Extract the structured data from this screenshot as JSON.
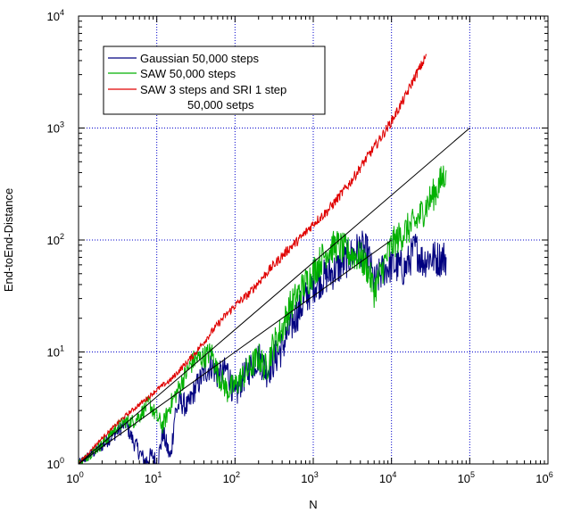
{
  "chart_data": {
    "type": "line",
    "title": "",
    "xlabel": "N",
    "ylabel": "End-toEnd-Distance",
    "xscale": "log",
    "yscale": "log",
    "xlim": [
      1,
      1000000
    ],
    "ylim": [
      1,
      10000
    ],
    "grid": true,
    "grid_style": "dotted",
    "legend_position": "top-left",
    "x_ticks": [
      {
        "base": "10",
        "exp": "0",
        "value": 1
      },
      {
        "base": "10",
        "exp": "1",
        "value": 10
      },
      {
        "base": "10",
        "exp": "2",
        "value": 100
      },
      {
        "base": "10",
        "exp": "3",
        "value": 1000
      },
      {
        "base": "10",
        "exp": "4",
        "value": 10000
      },
      {
        "base": "10",
        "exp": "5",
        "value": 100000
      },
      {
        "base": "10",
        "exp": "6",
        "value": 1000000
      }
    ],
    "y_ticks": [
      {
        "base": "10",
        "exp": "0",
        "value": 1
      },
      {
        "base": "10",
        "exp": "1",
        "value": 10
      },
      {
        "base": "10",
        "exp": "2",
        "value": 100
      },
      {
        "base": "10",
        "exp": "3",
        "value": 1000
      },
      {
        "base": "10",
        "exp": "4",
        "value": 10000
      }
    ],
    "series": [
      {
        "name": "Gaussian 50,000 steps",
        "color": "#000080",
        "noise": 0.34,
        "points": [
          [
            1,
            1
          ],
          [
            2,
            1.45
          ],
          [
            4,
            2.3
          ],
          [
            5,
            1.6
          ],
          [
            7,
            1.05
          ],
          [
            9,
            1.2
          ],
          [
            10,
            0.95
          ],
          [
            12,
            1.9
          ],
          [
            15,
            1.1
          ],
          [
            17,
            2.8
          ],
          [
            20,
            3.6
          ],
          [
            25,
            3.2
          ],
          [
            30,
            4.5
          ],
          [
            40,
            6.5
          ],
          [
            50,
            7.5
          ],
          [
            60,
            6
          ],
          [
            80,
            7
          ],
          [
            100,
            3.8
          ],
          [
            120,
            5.5
          ],
          [
            150,
            7
          ],
          [
            200,
            9
          ],
          [
            250,
            6.8
          ],
          [
            300,
            8
          ],
          [
            400,
            11
          ],
          [
            500,
            16
          ],
          [
            600,
            21
          ],
          [
            800,
            30
          ],
          [
            1000,
            40
          ],
          [
            1500,
            48
          ],
          [
            2000,
            55
          ],
          [
            3000,
            72
          ],
          [
            4000,
            85
          ],
          [
            5000,
            75
          ],
          [
            6000,
            40
          ],
          [
            8000,
            55
          ],
          [
            10000,
            60
          ],
          [
            15000,
            55
          ],
          [
            20000,
            85
          ],
          [
            25000,
            65
          ],
          [
            30000,
            70
          ],
          [
            40000,
            68
          ],
          [
            50000,
            70
          ]
        ]
      },
      {
        "name": "SAW 50,000 steps",
        "color": "#00b000",
        "noise": 0.3,
        "points": [
          [
            1,
            1
          ],
          [
            2,
            1.5
          ],
          [
            3,
            2.1
          ],
          [
            4,
            2.4
          ],
          [
            5,
            2.4
          ],
          [
            6,
            2.7
          ],
          [
            8,
            3.5
          ],
          [
            10,
            2.6
          ],
          [
            12,
            2.2
          ],
          [
            15,
            3.4
          ],
          [
            20,
            5
          ],
          [
            25,
            7
          ],
          [
            30,
            8.5
          ],
          [
            40,
            9
          ],
          [
            50,
            10
          ],
          [
            60,
            6.5
          ],
          [
            80,
            4.5
          ],
          [
            100,
            5
          ],
          [
            150,
            7
          ],
          [
            200,
            9
          ],
          [
            250,
            7
          ],
          [
            300,
            11
          ],
          [
            400,
            16
          ],
          [
            500,
            25
          ],
          [
            700,
            36
          ],
          [
            1000,
            52
          ],
          [
            1500,
            80
          ],
          [
            2000,
            90
          ],
          [
            3000,
            75
          ],
          [
            4000,
            70
          ],
          [
            5000,
            55
          ],
          [
            6000,
            35
          ],
          [
            8000,
            60
          ],
          [
            10000,
            90
          ],
          [
            15000,
            120
          ],
          [
            20000,
            140
          ],
          [
            30000,
            220
          ],
          [
            40000,
            300
          ],
          [
            50000,
            420
          ]
        ]
      },
      {
        "name": "SAW 3 steps and SRI 1 step",
        "name_line2": "50,000 setps",
        "color": "#e00000",
        "noise": 0.09,
        "points": [
          [
            1,
            1
          ],
          [
            2,
            1.7
          ],
          [
            4,
            2.7
          ],
          [
            6,
            3.4
          ],
          [
            8,
            4
          ],
          [
            10,
            4.6
          ],
          [
            15,
            5.6
          ],
          [
            20,
            7
          ],
          [
            30,
            9.5
          ],
          [
            50,
            15
          ],
          [
            70,
            20
          ],
          [
            100,
            26
          ],
          [
            150,
            33
          ],
          [
            200,
            42
          ],
          [
            300,
            58
          ],
          [
            500,
            85
          ],
          [
            700,
            105
          ],
          [
            1000,
            140
          ],
          [
            1500,
            180
          ],
          [
            2000,
            230
          ],
          [
            3000,
            330
          ],
          [
            5000,
            560
          ],
          [
            7000,
            780
          ],
          [
            10000,
            1150
          ],
          [
            15000,
            1900
          ],
          [
            20000,
            2900
          ],
          [
            25000,
            3800
          ],
          [
            28000,
            4500
          ]
        ]
      },
      {
        "name": "",
        "color": "#000000",
        "noise": 0,
        "points": [
          [
            1,
            1
          ],
          [
            100000,
            1000
          ]
        ]
      },
      {
        "name": "",
        "color": "#000000",
        "noise": 0,
        "points": [
          [
            1,
            1
          ],
          [
            10000,
            100
          ]
        ]
      }
    ]
  }
}
